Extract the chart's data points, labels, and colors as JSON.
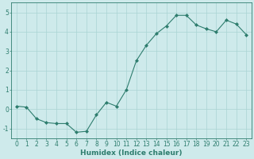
{
  "x": [
    0,
    1,
    2,
    3,
    4,
    5,
    6,
    7,
    8,
    9,
    10,
    11,
    12,
    13,
    14,
    15,
    16,
    17,
    18,
    19,
    20,
    21,
    22,
    23
  ],
  "y": [
    0.15,
    0.1,
    -0.5,
    -0.7,
    -0.75,
    -0.75,
    -1.2,
    -1.15,
    -0.3,
    0.35,
    0.15,
    1.0,
    2.5,
    3.3,
    3.9,
    4.3,
    4.85,
    4.85,
    4.35,
    4.15,
    4.0,
    4.6,
    4.4,
    3.85
  ],
  "line_color": "#2e7d6e",
  "marker": "D",
  "marker_size": 2.0,
  "bg_color": "#ceeaeb",
  "grid_color": "#aad4d4",
  "axis_color": "#2e7d6e",
  "tick_color": "#2e7d6e",
  "xlabel": "Humidex (Indice chaleur)",
  "xlim": [
    -0.5,
    23.5
  ],
  "ylim": [
    -1.5,
    5.5
  ],
  "yticks": [
    -1,
    0,
    1,
    2,
    3,
    4,
    5
  ],
  "xticks": [
    0,
    1,
    2,
    3,
    4,
    5,
    6,
    7,
    8,
    9,
    10,
    11,
    12,
    13,
    14,
    15,
    16,
    17,
    18,
    19,
    20,
    21,
    22,
    23
  ],
  "xlabel_fontsize": 6.5,
  "tick_fontsize": 5.5,
  "linewidth": 0.8
}
